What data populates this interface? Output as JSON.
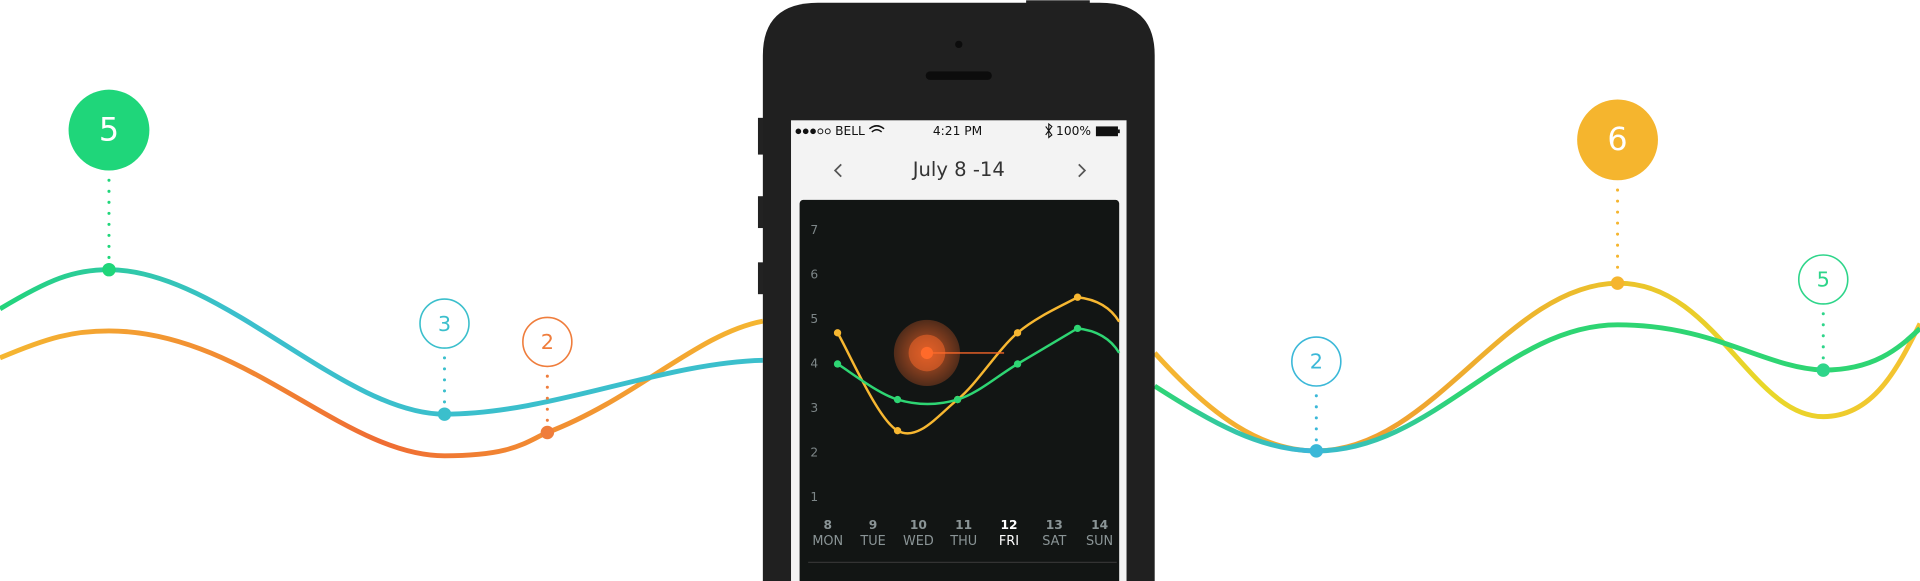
{
  "status_bar": {
    "carrier": "BELL",
    "time": "4:21 PM",
    "battery": "100%"
  },
  "header": {
    "title": "July 8 -14"
  },
  "chart_data": {
    "type": "line",
    "days": [
      {
        "date": "8",
        "day": "MON"
      },
      {
        "date": "9",
        "day": "TUE"
      },
      {
        "date": "10",
        "day": "WED"
      },
      {
        "date": "11",
        "day": "THU"
      },
      {
        "date": "12",
        "day": "FRI"
      },
      {
        "date": "13",
        "day": "SAT"
      },
      {
        "date": "14",
        "day": "SUN"
      }
    ],
    "selected_day": 4,
    "ylim": [
      1,
      7
    ],
    "yticks": [
      1,
      2,
      3,
      4,
      5,
      6,
      7
    ],
    "series": [
      {
        "color": "#f7b731",
        "values": [
          4.7,
          2.5,
          3.2,
          4.7,
          5.5
        ]
      },
      {
        "color": "#2ed573",
        "values": [
          4.0,
          3.2,
          3.2,
          4.0,
          4.8
        ]
      }
    ]
  },
  "callouts": [
    {
      "value": 5,
      "color": "#1fd67a",
      "filled": true
    },
    {
      "value": 3,
      "color": "#3bbfcc",
      "filled": false
    },
    {
      "value": 2,
      "color": "#ef7d3c",
      "filled": false
    },
    {
      "value": 6,
      "color": "#f5b52e",
      "filled": true
    },
    {
      "value": 2,
      "color": "#3bb8d8",
      "filled": false
    },
    {
      "value": 5,
      "color": "#2ed58a",
      "filled": false
    }
  ]
}
